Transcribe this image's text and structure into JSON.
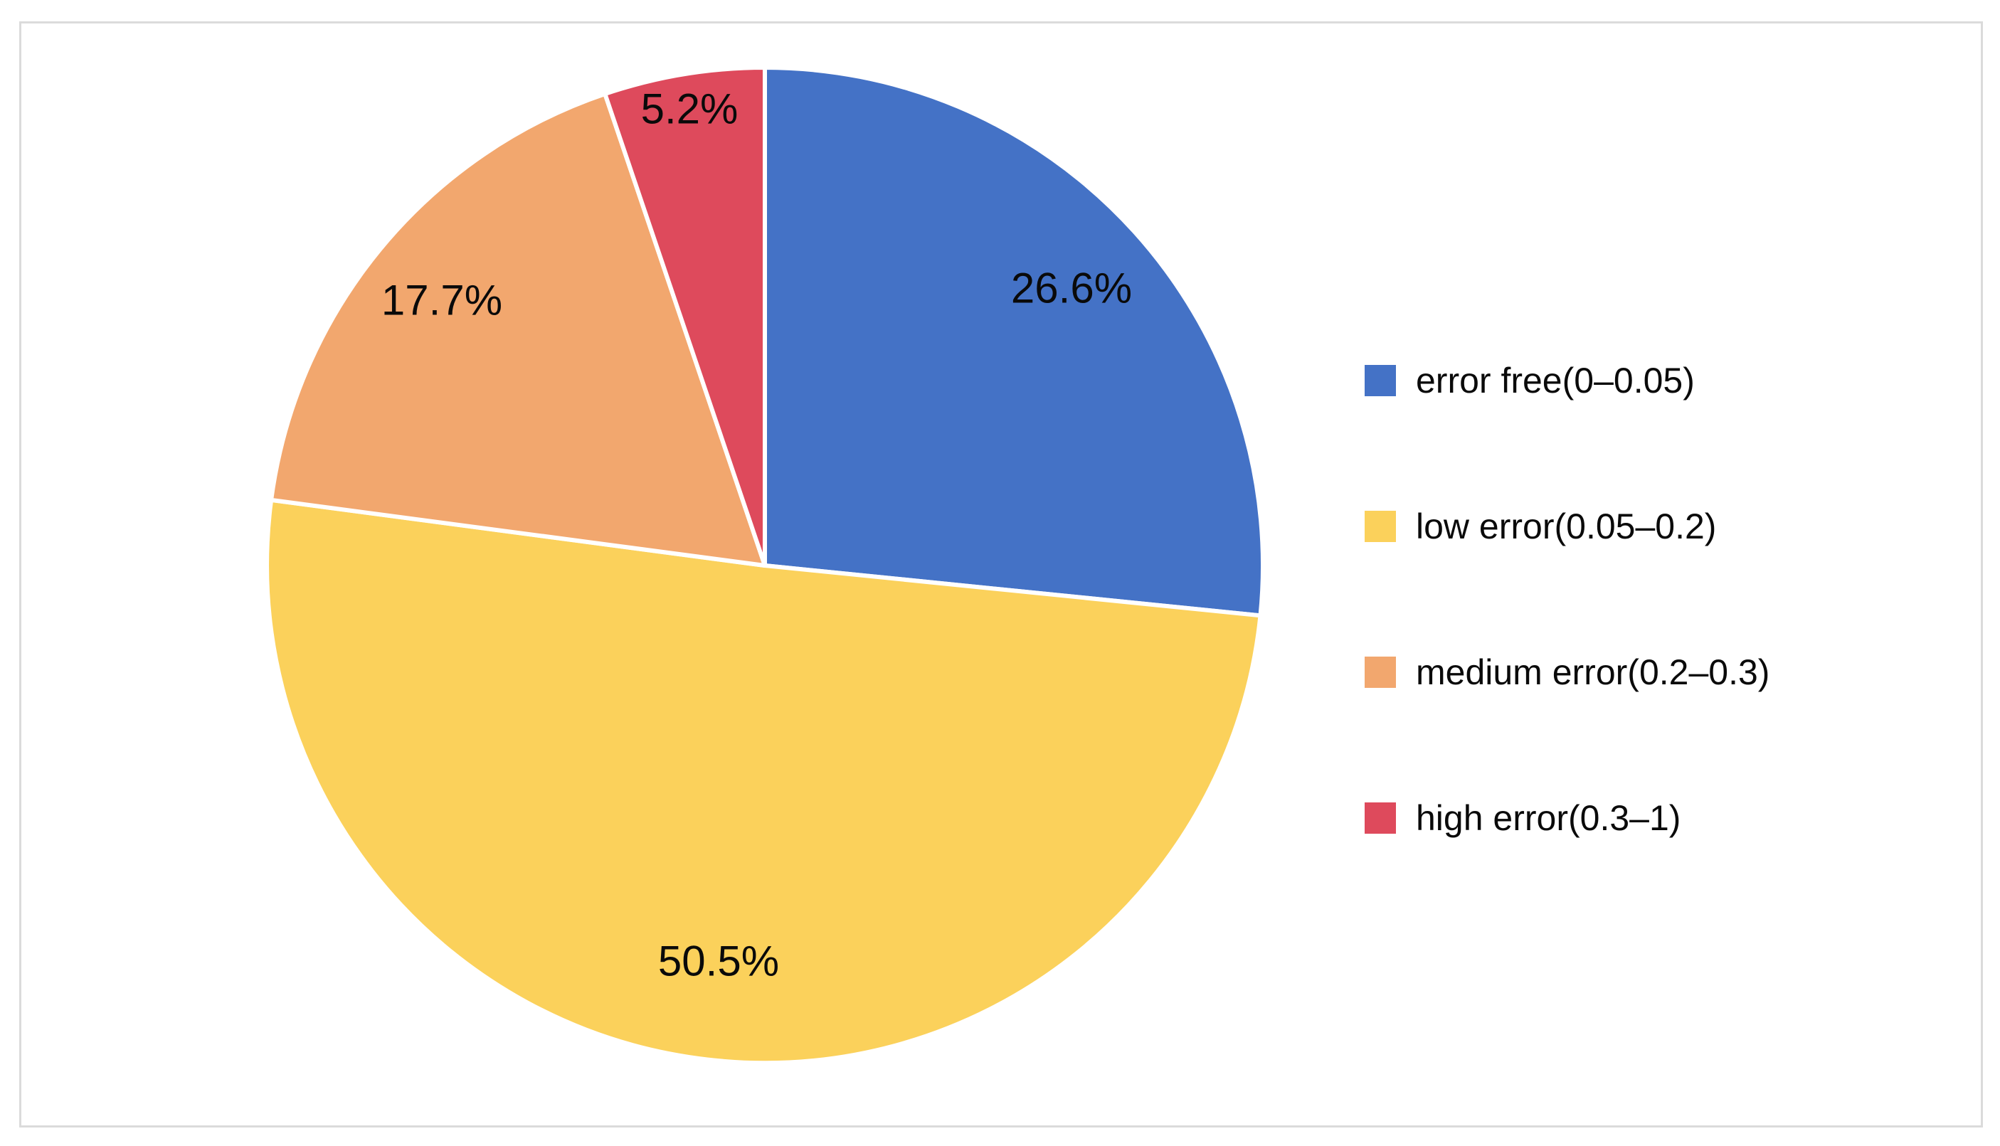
{
  "figure": {
    "background": "#FFFFFF",
    "frame_border_color": "#DBDBDB",
    "label_text_color": "#0A0A0A"
  },
  "chart_data": {
    "type": "pie",
    "title": "",
    "direction": "clockwise",
    "start_angle_deg": 0,
    "legend_position": "right",
    "slices": [
      {
        "label": "error free(0–0.05)",
        "value": 26.6,
        "display": "26.6%",
        "color": "#4472C6",
        "label_radius_frac": 0.83
      },
      {
        "label": "low error(0.05–0.2)",
        "value": 50.5,
        "display": "50.5%",
        "color": "#FBD15B",
        "label_radius_frac": 0.8
      },
      {
        "label": "medium error(0.2–0.3)",
        "value": 17.7,
        "display": "17.7%",
        "color": "#F2A76E",
        "label_radius_frac": 0.84
      },
      {
        "label": "high error(0.3–1)",
        "value": 5.2,
        "display": "5.2%",
        "color": "#DE4A5C",
        "label_radius_frac": 0.93
      }
    ]
  }
}
